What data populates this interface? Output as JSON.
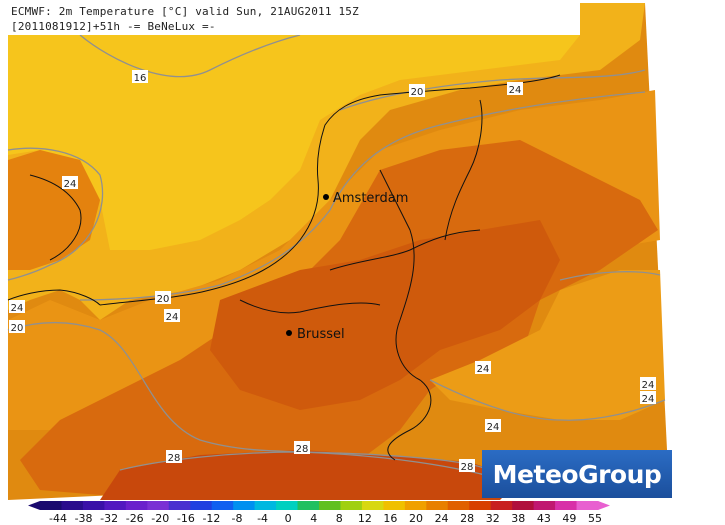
{
  "title": {
    "line1": "ECMWF: 2m Temperature [°C] valid Sun, 21AUG2011 15Z",
    "line2": "[2011081912]+51h  -= BeNeLux =-"
  },
  "cities": [
    {
      "name": "Amsterdam"
    },
    {
      "name": "Brussel"
    }
  ],
  "contour_labels": [
    "16",
    "20",
    "24",
    "24",
    "24",
    "20",
    "20",
    "24",
    "24",
    "24",
    "24",
    "24",
    "28",
    "28",
    "28"
  ],
  "logo": "MeteoGroup",
  "colorbar": {
    "ticks": [
      "-44",
      "-38",
      "-32",
      "-26",
      "-20",
      "-16",
      "-12",
      "-8",
      "-4",
      "0",
      "4",
      "8",
      "12",
      "16",
      "20",
      "24",
      "28",
      "32",
      "38",
      "43",
      "49",
      "55"
    ],
    "colors": [
      "#1a0a6e",
      "#2a0c8c",
      "#3a10a8",
      "#5218c0",
      "#6a20cc",
      "#7a30d4",
      "#4a30d0",
      "#2040e0",
      "#1060f0",
      "#0090f0",
      "#00b8e0",
      "#00d0c0",
      "#20c060",
      "#60c020",
      "#a0d010",
      "#d8d810",
      "#f0c000",
      "#f0a000",
      "#e88000",
      "#e06000",
      "#d84000",
      "#c82020",
      "#b0103c",
      "#c01870",
      "#d830a8",
      "#e860d0"
    ]
  }
}
